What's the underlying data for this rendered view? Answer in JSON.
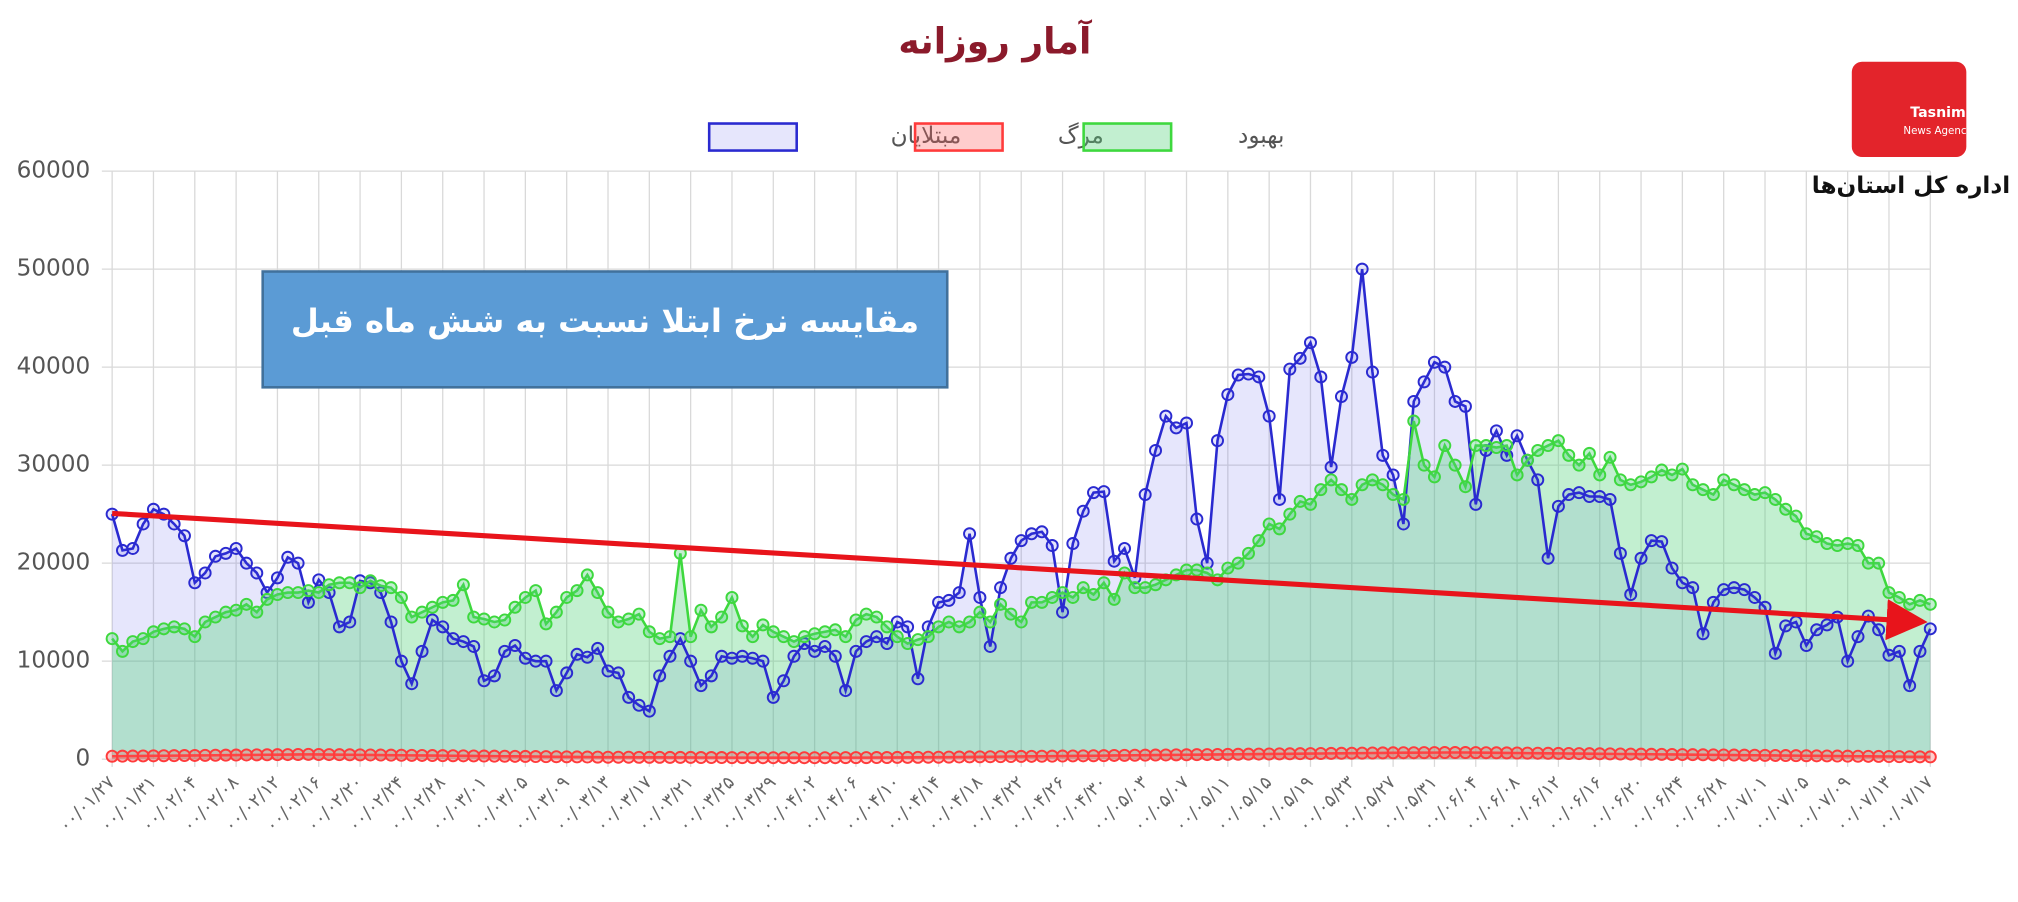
{
  "chart_data": {
    "type": "line",
    "title": "آمار روزانه",
    "annotation": "مقایسه نرخ ابتلا نسبت به شش ماه قبل",
    "categories": [
      "۰۰/۰۱/۲۷",
      null,
      null,
      null,
      "۰۰/۰۱/۳۱",
      null,
      null,
      null,
      "۰۰/۰۲/۰۴",
      null,
      null,
      null,
      "۰۰/۰۲/۰۸",
      null,
      null,
      null,
      "۰۰/۰۲/۱۲",
      null,
      null,
      null,
      "۰۰/۰۲/۱۶",
      null,
      null,
      null,
      "۰۰/۰۲/۲۰",
      null,
      null,
      null,
      "۰۰/۰۲/۲۴",
      null,
      null,
      null,
      "۰۰/۰۲/۲۸",
      null,
      null,
      null,
      "۰۰/۰۳/۰۱",
      null,
      null,
      null,
      "۰۰/۰۳/۰۵",
      null,
      null,
      null,
      "۰۰/۰۳/۰۹",
      null,
      null,
      null,
      "۰۰/۰۳/۱۳",
      null,
      null,
      null,
      "۰۰/۰۳/۱۷",
      null,
      null,
      null,
      "۰۰/۰۳/۲۱",
      null,
      null,
      null,
      "۰۰/۰۳/۲۵",
      null,
      null,
      null,
      "۰۰/۰۳/۲۹",
      null,
      null,
      null,
      "۰۰/۰۴/۰۲",
      null,
      null,
      null,
      "۰۰/۰۴/۰۶",
      null,
      null,
      null,
      "۰۰/۰۴/۱۰",
      null,
      null,
      null,
      "۰۰/۰۴/۱۴",
      null,
      null,
      null,
      "۰۰/۰۴/۱۸",
      null,
      null,
      null,
      "۰۰/۰۴/۲۲",
      null,
      null,
      null,
      "۰۰/۰۴/۲۶",
      null,
      null,
      null,
      "۰۰/۰۴/۳۰",
      null,
      null,
      null,
      "۰۰/۰۵/۰۳",
      null,
      null,
      null,
      "۰۰/۰۵/۰۷",
      null,
      null,
      null,
      "۰۰/۰۵/۱۱",
      null,
      null,
      null,
      "۰۰/۰۵/۱۵",
      null,
      null,
      null,
      "۰۰/۰۵/۱۹",
      null,
      null,
      null,
      "۰۰/۰۵/۲۳",
      null,
      null,
      null,
      "۰۰/۰۵/۲۷",
      null,
      null,
      null,
      "۰۰/۰۵/۳۱",
      null,
      null,
      null,
      "۰۰/۰۶/۰۴",
      null,
      null,
      null,
      "۰۰/۰۶/۰۸",
      null,
      null,
      null,
      "۰۰/۰۶/۱۲",
      null,
      null,
      null,
      "۰۰/۰۶/۱۶",
      null,
      null,
      null,
      "۰۰/۰۶/۲۰",
      null,
      null,
      null,
      "۰۰/۰۶/۲۴",
      null,
      null,
      null,
      "۰۰/۰۶/۲۸",
      null,
      null,
      null,
      "۰۰/۰۷/۰۱",
      null,
      null,
      null,
      "۰۰/۰۷/۰۵",
      null,
      null,
      null,
      "۰۰/۰۷/۰۹",
      null,
      null,
      null,
      "۰۰/۰۷/۱۳",
      null,
      null,
      null,
      "۰۰/۰۷/۱۷"
    ],
    "series": [
      {
        "name": "مبتلایان",
        "color": "#2a2ad0",
        "fill": "rgba(60,60,230,0.13)",
        "values": [
          25000,
          21300,
          21500,
          24000,
          25500,
          25000,
          24000,
          22800,
          18000,
          19000,
          20700,
          21000,
          21500,
          20000,
          19000,
          17000,
          18500,
          20600,
          20000,
          16000,
          18300,
          17000,
          13500,
          14000,
          18200,
          18000,
          17000,
          14000,
          10000,
          7700,
          11000,
          14200,
          13500,
          12300,
          12000,
          11500,
          8000,
          8500,
          11000,
          11600,
          10300,
          10000,
          10000,
          7000,
          8800,
          10700,
          10400,
          11300,
          9000,
          8800,
          6300,
          5500,
          4900,
          8500,
          10500,
          12300,
          10000,
          7500,
          8500,
          10500,
          10300,
          10500,
          10300,
          10000,
          6300,
          8000,
          10500,
          11800,
          11000,
          11500,
          10500,
          7000,
          11000,
          12000,
          12500,
          11800,
          14000,
          13500,
          8200,
          13500,
          16000,
          16200,
          17000,
          23000,
          16500,
          11500,
          17500,
          20500,
          22300,
          23000,
          23200,
          21800,
          15000,
          22000,
          25300,
          27200,
          27300,
          20200,
          21500,
          18500,
          27000,
          31500,
          35000,
          33800,
          34300,
          24500,
          20000,
          32500,
          37200,
          39200,
          39300,
          39000,
          35000,
          26500,
          39800,
          40900,
          42500,
          39000,
          29800,
          37000,
          41000,
          50000,
          39500,
          31000,
          29000,
          24000,
          36500,
          38500,
          40500,
          40000,
          36500,
          36000,
          26000,
          31500,
          33500,
          31000,
          33000,
          30500,
          28500,
          20500,
          25800,
          27000,
          27200,
          26800,
          26800,
          26500,
          21000,
          16800,
          20500,
          22300,
          22200,
          19500,
          18000,
          17500,
          12800,
          16000,
          17300,
          17500,
          17300,
          16500,
          15500,
          10800,
          13600,
          14000,
          11600,
          13200,
          13700,
          14500,
          10000,
          12500,
          14600,
          13200,
          10600,
          11000,
          7500,
          11000,
          13300
        ]
      },
      {
        "name": "مرگ",
        "color": "#ff3b3b",
        "fill": "rgba(255,90,90,0.3)",
        "values": [
          300,
          310,
          320,
          330,
          340,
          350,
          360,
          370,
          380,
          390,
          400,
          410,
          420,
          430,
          440,
          450,
          460,
          470,
          480,
          490,
          480,
          470,
          460,
          450,
          440,
          430,
          420,
          410,
          400,
          390,
          380,
          370,
          360,
          350,
          340,
          330,
          320,
          310,
          300,
          290,
          280,
          270,
          260,
          250,
          240,
          230,
          220,
          210,
          200,
          200,
          200,
          190,
          190,
          190,
          180,
          180,
          180,
          170,
          170,
          170,
          160,
          160,
          160,
          150,
          150,
          150,
          150,
          150,
          150,
          150,
          150,
          160,
          160,
          160,
          170,
          170,
          180,
          180,
          190,
          200,
          200,
          210,
          220,
          230,
          240,
          250,
          260,
          270,
          280,
          290,
          300,
          310,
          320,
          330,
          340,
          350,
          360,
          380,
          390,
          400,
          410,
          420,
          430,
          440,
          450,
          460,
          470,
          480,
          490,
          500,
          510,
          520,
          530,
          540,
          550,
          560,
          570,
          580,
          590,
          600,
          610,
          620,
          630,
          640,
          650,
          660,
          660,
          670,
          670,
          680,
          680,
          680,
          670,
          660,
          650,
          640,
          630,
          620,
          610,
          600,
          590,
          580,
          570,
          560,
          550,
          540,
          530,
          520,
          510,
          500,
          490,
          480,
          470,
          460,
          450,
          440,
          430,
          420,
          410,
          400,
          390,
          380,
          370,
          360,
          350,
          340,
          330,
          320,
          310,
          300,
          290,
          280,
          270,
          260,
          250,
          240,
          230
        ]
      },
      {
        "name": "بهبود",
        "color": "#3ed83e",
        "fill": "rgba(80,210,120,0.35)",
        "values": [
          12300,
          11000,
          12000,
          12300,
          13000,
          13300,
          13500,
          13300,
          12500,
          14000,
          14500,
          15000,
          15200,
          15800,
          15000,
          16300,
          16800,
          17000,
          17000,
          17200,
          17000,
          17800,
          18000,
          18000,
          17500,
          18200,
          17700,
          17500,
          16500,
          14500,
          15000,
          15500,
          16000,
          16200,
          17800,
          14500,
          14300,
          14000,
          14200,
          15500,
          16500,
          17200,
          13800,
          15000,
          16500,
          17200,
          18800,
          17000,
          15000,
          14000,
          14300,
          14800,
          13000,
          12300,
          12500,
          21000,
          12500,
          15200,
          13500,
          14500,
          16500,
          13600,
          12500,
          13700,
          13000,
          12500,
          12000,
          12500,
          12800,
          13000,
          13200,
          12500,
          14200,
          14800,
          14500,
          13500,
          12500,
          11800,
          12200,
          12500,
          13500,
          14000,
          13500,
          14000,
          15000,
          14000,
          15800,
          14800,
          14000,
          16000,
          16000,
          16500,
          17000,
          16500,
          17500,
          16800,
          18000,
          16300,
          19000,
          17500,
          17500,
          17800,
          18300,
          18800,
          19300,
          19300,
          19000,
          18300,
          19500,
          20000,
          21000,
          22300,
          24000,
          23500,
          25000,
          26300,
          26000,
          27500,
          28500,
          27500,
          26500,
          28000,
          28500,
          28000,
          27000,
          26500,
          34500,
          30000,
          28800,
          32000,
          30000,
          27800,
          32000,
          32000,
          31800,
          32000,
          29000,
          30500,
          31500,
          32000,
          32500,
          31000,
          30000,
          31200,
          29000,
          30800,
          28500,
          28000,
          28300,
          28800,
          29500,
          29000,
          29600,
          28000,
          27500,
          27000,
          28500,
          28000,
          27500,
          27000,
          27200,
          26500,
          25500,
          24800,
          23000,
          22700,
          22000,
          21800,
          22000,
          21800,
          20000,
          20000,
          17000,
          16500,
          15800,
          16200,
          15800
        ]
      }
    ],
    "ylim": [
      0,
      60000
    ],
    "yticks": [
      0,
      10000,
      20000,
      30000,
      40000,
      50000,
      60000
    ],
    "grid": true
  },
  "brand": {
    "name": "Tasnim",
    "tagline": "News Agency",
    "department": "اداره کل استان‌ها"
  }
}
